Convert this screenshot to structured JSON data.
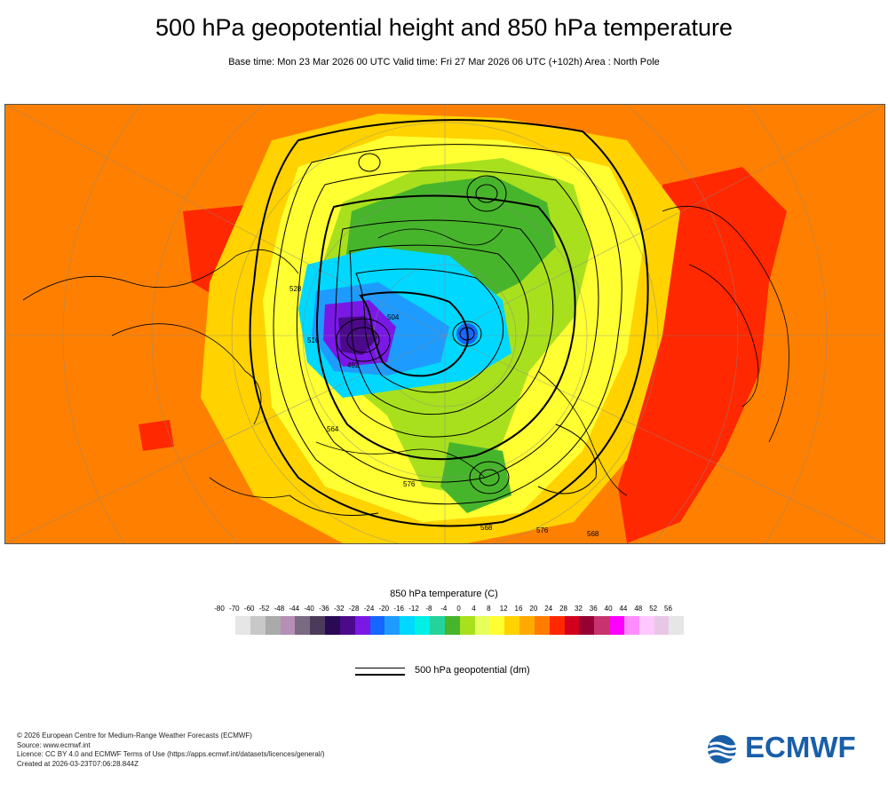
{
  "header": {
    "title": "500 hPa geopotential height and 850 hPa temperature",
    "subtitle": "Base time: Mon 23 Mar 2026 00 UTC Valid time: Fri 27 Mar 2026 06 UTC (+102h) Area : North Pole"
  },
  "map": {
    "contour_labels": [
      "564",
      "568",
      "576",
      "568",
      "576",
      "528",
      "516",
      "504",
      "492"
    ]
  },
  "legend": {
    "title": "850 hPa temperature (C)",
    "ticks": [
      "-80",
      "-70",
      "-60",
      "-52",
      "-48",
      "-44",
      "-40",
      "-36",
      "-32",
      "-28",
      "-24",
      "-20",
      "-16",
      "-12",
      "-8",
      "-4",
      "0",
      "4",
      "8",
      "12",
      "16",
      "20",
      "24",
      "28",
      "32",
      "36",
      "40",
      "44",
      "48",
      "52",
      "56"
    ],
    "colors": [
      "#e6e6e6",
      "#c8c8c8",
      "#aaaaaa",
      "#b58fb5",
      "#7a6a82",
      "#4b3a5a",
      "#2a0a55",
      "#4a0a8a",
      "#7a18e6",
      "#1466ff",
      "#1e9bff",
      "#00d8ff",
      "#00f0e6",
      "#24d39c",
      "#47b52b",
      "#a8e01e",
      "#e6ff5a",
      "#ffff32",
      "#ffd200",
      "#ffaa00",
      "#ff7c00",
      "#ff2800",
      "#d2001e",
      "#960032",
      "#c8326e",
      "#ff00ff",
      "#ff8cff",
      "#ffc8ff",
      "#e6c8e6",
      "#e6e6e6"
    ],
    "contour_label": "500 hPa geopotential (dm)"
  },
  "footer": {
    "lines": [
      "© 2026 European Centre for Medium-Range Weather Forecasts (ECMWF)",
      "Source: www.ecmwf.int",
      "Licence: CC BY 4.0 and ECMWF Terms of Use (https://apps.ecmwf.int/datasets/licences/general/)",
      "Created at 2026-03-23T07:06:28.844Z"
    ]
  },
  "logo": {
    "text": "ECMWF",
    "color": "#1a5ea8"
  }
}
